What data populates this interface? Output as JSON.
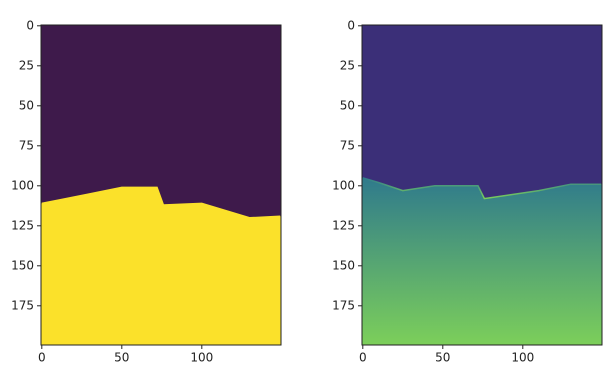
{
  "chart_data": [
    {
      "type": "image",
      "x": [
        0,
        10,
        30,
        50,
        72,
        76,
        100,
        130,
        149
      ],
      "values": [
        111,
        109,
        105,
        101,
        101,
        112,
        111,
        120,
        119
      ],
      "colors": [
        "#3e1a4b",
        "#fbe12a"
      ],
      "xlim": [
        -0.5,
        149.5
      ],
      "ylim": [
        199.5,
        -0.5
      ],
      "xticks": [
        0,
        50,
        100
      ],
      "yticks": [
        0,
        25,
        50,
        75,
        100,
        125,
        150,
        175
      ]
    },
    {
      "type": "image",
      "x": [
        0,
        10,
        25,
        45,
        72,
        76,
        110,
        130,
        149
      ],
      "values": [
        95,
        98,
        103,
        100,
        100,
        108,
        103,
        99,
        99
      ],
      "colors": [
        "#3b2f78",
        "#2f7a8c",
        "#7ccf5a"
      ],
      "xlim": [
        -0.5,
        149.5
      ],
      "ylim": [
        199.5,
        -0.5
      ],
      "xticks": [
        0,
        50,
        100
      ],
      "yticks": [
        0,
        25,
        50,
        75,
        100,
        125,
        150,
        175
      ]
    }
  ]
}
